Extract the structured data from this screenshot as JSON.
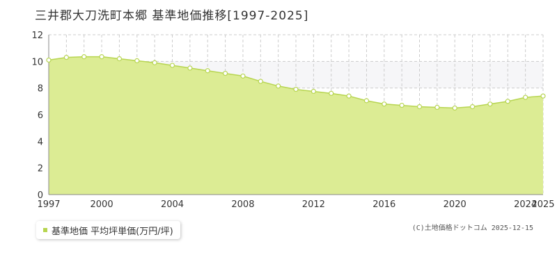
{
  "colors": {
    "fill": "#dcec94",
    "line": "#b7d550",
    "point_fill": "#ffffff",
    "point_stroke": "#b7d550",
    "grid": "#cccccc",
    "axis": "#888888",
    "upper_band": "#f6f6f8"
  },
  "credit": "(C)土地価格ドットコム 2025-12-15",
  "chart_data": {
    "type": "area",
    "title": "三井郡大刀洗町本郷 基準地価推移[1997-2025]",
    "xlabel": "",
    "ylabel": "",
    "x": [
      1997,
      1998,
      1999,
      2000,
      2001,
      2002,
      2003,
      2004,
      2005,
      2006,
      2007,
      2008,
      2009,
      2010,
      2011,
      2012,
      2013,
      2014,
      2015,
      2016,
      2017,
      2018,
      2019,
      2020,
      2021,
      2022,
      2023,
      2024,
      2025
    ],
    "series": [
      {
        "name": "基準地価 平均坪単価(万円/坪)",
        "values": [
          10.1,
          10.3,
          10.35,
          10.35,
          10.2,
          10.05,
          9.9,
          9.7,
          9.5,
          9.3,
          9.1,
          8.9,
          8.5,
          8.15,
          7.9,
          7.75,
          7.6,
          7.4,
          7.05,
          6.8,
          6.7,
          6.6,
          6.55,
          6.5,
          6.6,
          6.8,
          7.0,
          7.3,
          7.4
        ]
      }
    ],
    "xlim": [
      1997,
      2025
    ],
    "ylim": [
      0,
      12
    ],
    "yticks": [
      0,
      2,
      4,
      6,
      8,
      10,
      12
    ],
    "xticks": [
      1997,
      2000,
      2004,
      2008,
      2012,
      2016,
      2020,
      2024,
      2025
    ],
    "grid": true,
    "legend": "bottom-left"
  }
}
